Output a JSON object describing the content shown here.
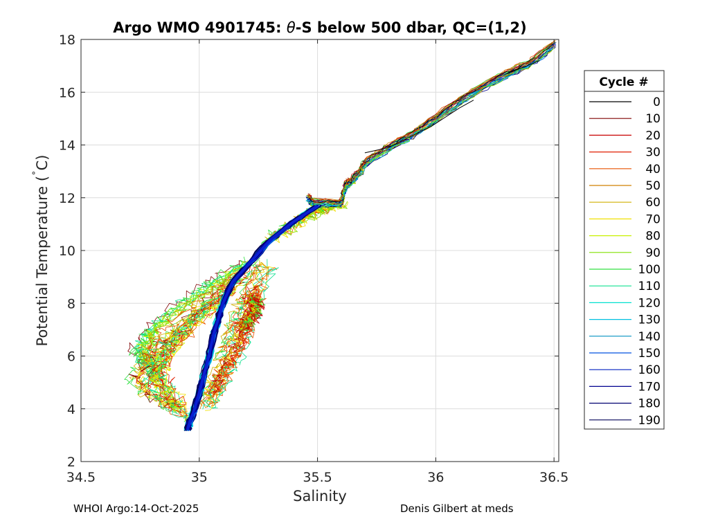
{
  "chart_data": {
    "type": "line",
    "title_main": "Argo WMO 4901745: ",
    "title_symbol": "θ",
    "title_rest": "-S below 500 dbar,  QC=(1,2)",
    "xlabel": "Salinity",
    "ylabel_pre": "Potential Temperature (",
    "ylabel_deg": "˚",
    "ylabel_post": "C)",
    "xlim": [
      34.5,
      36.52
    ],
    "ylim": [
      2,
      18
    ],
    "xticks": [
      34.5,
      35,
      35.5,
      36,
      36.5
    ],
    "xtick_labels": [
      "34.5",
      "35",
      "35.5",
      "36",
      "36.5"
    ],
    "yticks": [
      2,
      4,
      6,
      8,
      10,
      12,
      14,
      16,
      18
    ],
    "ytick_labels": [
      "2",
      "4",
      "6",
      "8",
      "10",
      "12",
      "14",
      "16",
      "18"
    ],
    "grid": true,
    "legend_title": "Cycle #",
    "legend_position": "right-outside",
    "legend": [
      {
        "label": "0",
        "color": "#000000"
      },
      {
        "label": "10",
        "color": "#7f0000"
      },
      {
        "label": "20",
        "color": "#c80000"
      },
      {
        "label": "30",
        "color": "#e01e00"
      },
      {
        "label": "40",
        "color": "#e85000"
      },
      {
        "label": "50",
        "color": "#d08000"
      },
      {
        "label": "60",
        "color": "#d0b000"
      },
      {
        "label": "70",
        "color": "#f0e000"
      },
      {
        "label": "80",
        "color": "#c8f000"
      },
      {
        "label": "90",
        "color": "#80e000"
      },
      {
        "label": "100",
        "color": "#30e040"
      },
      {
        "label": "110",
        "color": "#10e090"
      },
      {
        "label": "120",
        "color": "#00e0d0"
      },
      {
        "label": "130",
        "color": "#00c0e0"
      },
      {
        "label": "140",
        "color": "#0090c0"
      },
      {
        "label": "150",
        "color": "#0050e0"
      },
      {
        "label": "160",
        "color": "#0020c0"
      },
      {
        "label": "170",
        "color": "#000090"
      },
      {
        "label": "180",
        "color": "#000070"
      },
      {
        "label": "190",
        "color": "#000058"
      }
    ],
    "envelope_ts": [
      [
        35.46,
        12.0
      ],
      [
        35.48,
        11.8
      ],
      [
        35.6,
        11.8
      ],
      [
        35.62,
        12.5
      ],
      [
        35.64,
        12.6
      ],
      [
        35.68,
        13.0
      ],
      [
        35.7,
        13.3
      ],
      [
        35.8,
        13.9
      ],
      [
        35.9,
        14.4
      ],
      [
        36.0,
        15.0
      ],
      [
        36.12,
        15.8
      ],
      [
        36.28,
        16.6
      ],
      [
        36.4,
        17.1
      ],
      [
        36.5,
        17.8
      ]
    ],
    "spread_curves": [
      {
        "s": [
          35.22,
          35.02,
          34.82,
          34.74,
          34.85
        ],
        "t": [
          9.6,
          8.6,
          7.2,
          6.2,
          5.4
        ]
      },
      {
        "s": [
          35.15,
          34.98,
          34.82,
          34.73,
          34.78,
          34.9
        ],
        "t": [
          9.0,
          7.6,
          6.4,
          5.2,
          4.6,
          4.0
        ]
      },
      {
        "s": [
          35.2,
          35.0,
          34.82,
          34.76,
          34.84
        ],
        "t": [
          9.4,
          8.2,
          7.0,
          6.0,
          5.0
        ]
      },
      {
        "s": [
          35.18,
          34.98,
          34.85,
          34.78,
          34.88,
          34.95
        ],
        "t": [
          8.8,
          7.4,
          6.4,
          5.6,
          4.4,
          3.6
        ]
      },
      {
        "s": [
          35.14,
          34.96,
          34.86,
          34.8,
          34.92
        ],
        "t": [
          8.5,
          7.0,
          6.0,
          5.0,
          3.9
        ]
      },
      {
        "s": [
          35.22,
          35.04,
          34.9,
          34.84,
          34.93
        ],
        "t": [
          9.2,
          7.9,
          6.6,
          5.4,
          4.0
        ]
      },
      {
        "s": [
          35.26,
          35.2,
          35.16,
          35.12,
          35.08,
          35.02
        ],
        "t": [
          9.6,
          8.2,
          7.4,
          6.4,
          5.2,
          4.2
        ]
      },
      {
        "s": [
          35.3,
          35.24,
          35.2,
          35.16,
          35.1,
          35.04
        ],
        "t": [
          9.4,
          7.9,
          7.0,
          6.0,
          5.0,
          4.0
        ]
      },
      {
        "s": [
          35.24,
          35.22,
          35.18,
          35.12,
          35.06
        ],
        "t": [
          8.6,
          7.5,
          6.6,
          5.6,
          4.6
        ]
      },
      {
        "s": [
          35.3,
          35.46,
          35.6
        ],
        "t": [
          10.4,
          11.3,
          11.8
        ]
      },
      {
        "s": [
          35.22,
          35.25,
          35.22,
          35.18
        ],
        "t": [
          8.2,
          8.0,
          7.4,
          7.0
        ]
      }
    ],
    "core_curve": {
      "s": [
        35.5,
        35.4,
        35.3,
        35.22,
        35.14,
        35.1,
        35.08,
        35.06,
        35.04,
        35.02,
        35.0,
        34.98,
        34.96,
        34.95
      ],
      "t": [
        11.7,
        11.1,
        10.4,
        9.6,
        8.8,
        8.0,
        7.4,
        6.8,
        6.0,
        5.3,
        4.6,
        4.0,
        3.5,
        3.2
      ]
    }
  },
  "footer": {
    "left": "WHOI Argo:14-Oct-2025",
    "right": "Denis Gilbert at meds"
  }
}
